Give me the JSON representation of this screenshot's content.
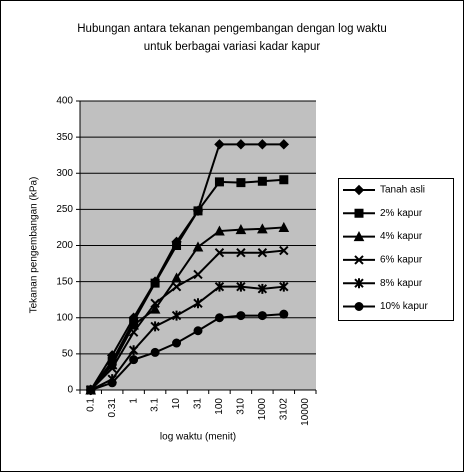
{
  "chart_data": {
    "type": "line",
    "title": [
      "Hubungan antara tekanan pengembangan dengan log waktu",
      "untuk berbagai variasi kadar kapur"
    ],
    "x_label": "log waktu (menit)",
    "y_label": "Tekanan pengembangan (kPa)",
    "categories": [
      "0.1",
      "0.31",
      "1",
      "3.1",
      "10",
      "31",
      "100",
      "310",
      "1000",
      "3102",
      "10000"
    ],
    "ylim": [
      0,
      400
    ],
    "yticks": [
      0,
      50,
      100,
      150,
      200,
      250,
      300,
      350,
      400
    ],
    "grid": true,
    "legend": "right",
    "series": [
      {
        "name": "Tanah asli",
        "color": "#000000",
        "marker": "diamond",
        "values": [
          0,
          48,
          100,
          150,
          205,
          248,
          340,
          340,
          340,
          340,
          null
        ]
      },
      {
        "name": "2% kapur",
        "color": "#000000",
        "marker": "square",
        "values": [
          0,
          40,
          95,
          148,
          200,
          248,
          288,
          287,
          289,
          291,
          null
        ]
      },
      {
        "name": "4% kapur",
        "color": "#000000",
        "marker": "triangle",
        "values": [
          0,
          35,
          90,
          112,
          155,
          198,
          220,
          222,
          223,
          225,
          null
        ]
      },
      {
        "name": "6% kapur",
        "color": "#000000",
        "marker": "x",
        "values": [
          0,
          30,
          80,
          120,
          143,
          160,
          190,
          190,
          190,
          193,
          null
        ]
      },
      {
        "name": "8% kapur",
        "color": "#000000",
        "marker": "star",
        "values": [
          0,
          15,
          55,
          88,
          103,
          120,
          143,
          143,
          140,
          143,
          null
        ]
      },
      {
        "name": "10% kapur",
        "color": "#000000",
        "marker": "circle",
        "values": [
          0,
          10,
          42,
          52,
          65,
          82,
          100,
          103,
          103,
          105,
          null
        ]
      }
    ]
  }
}
